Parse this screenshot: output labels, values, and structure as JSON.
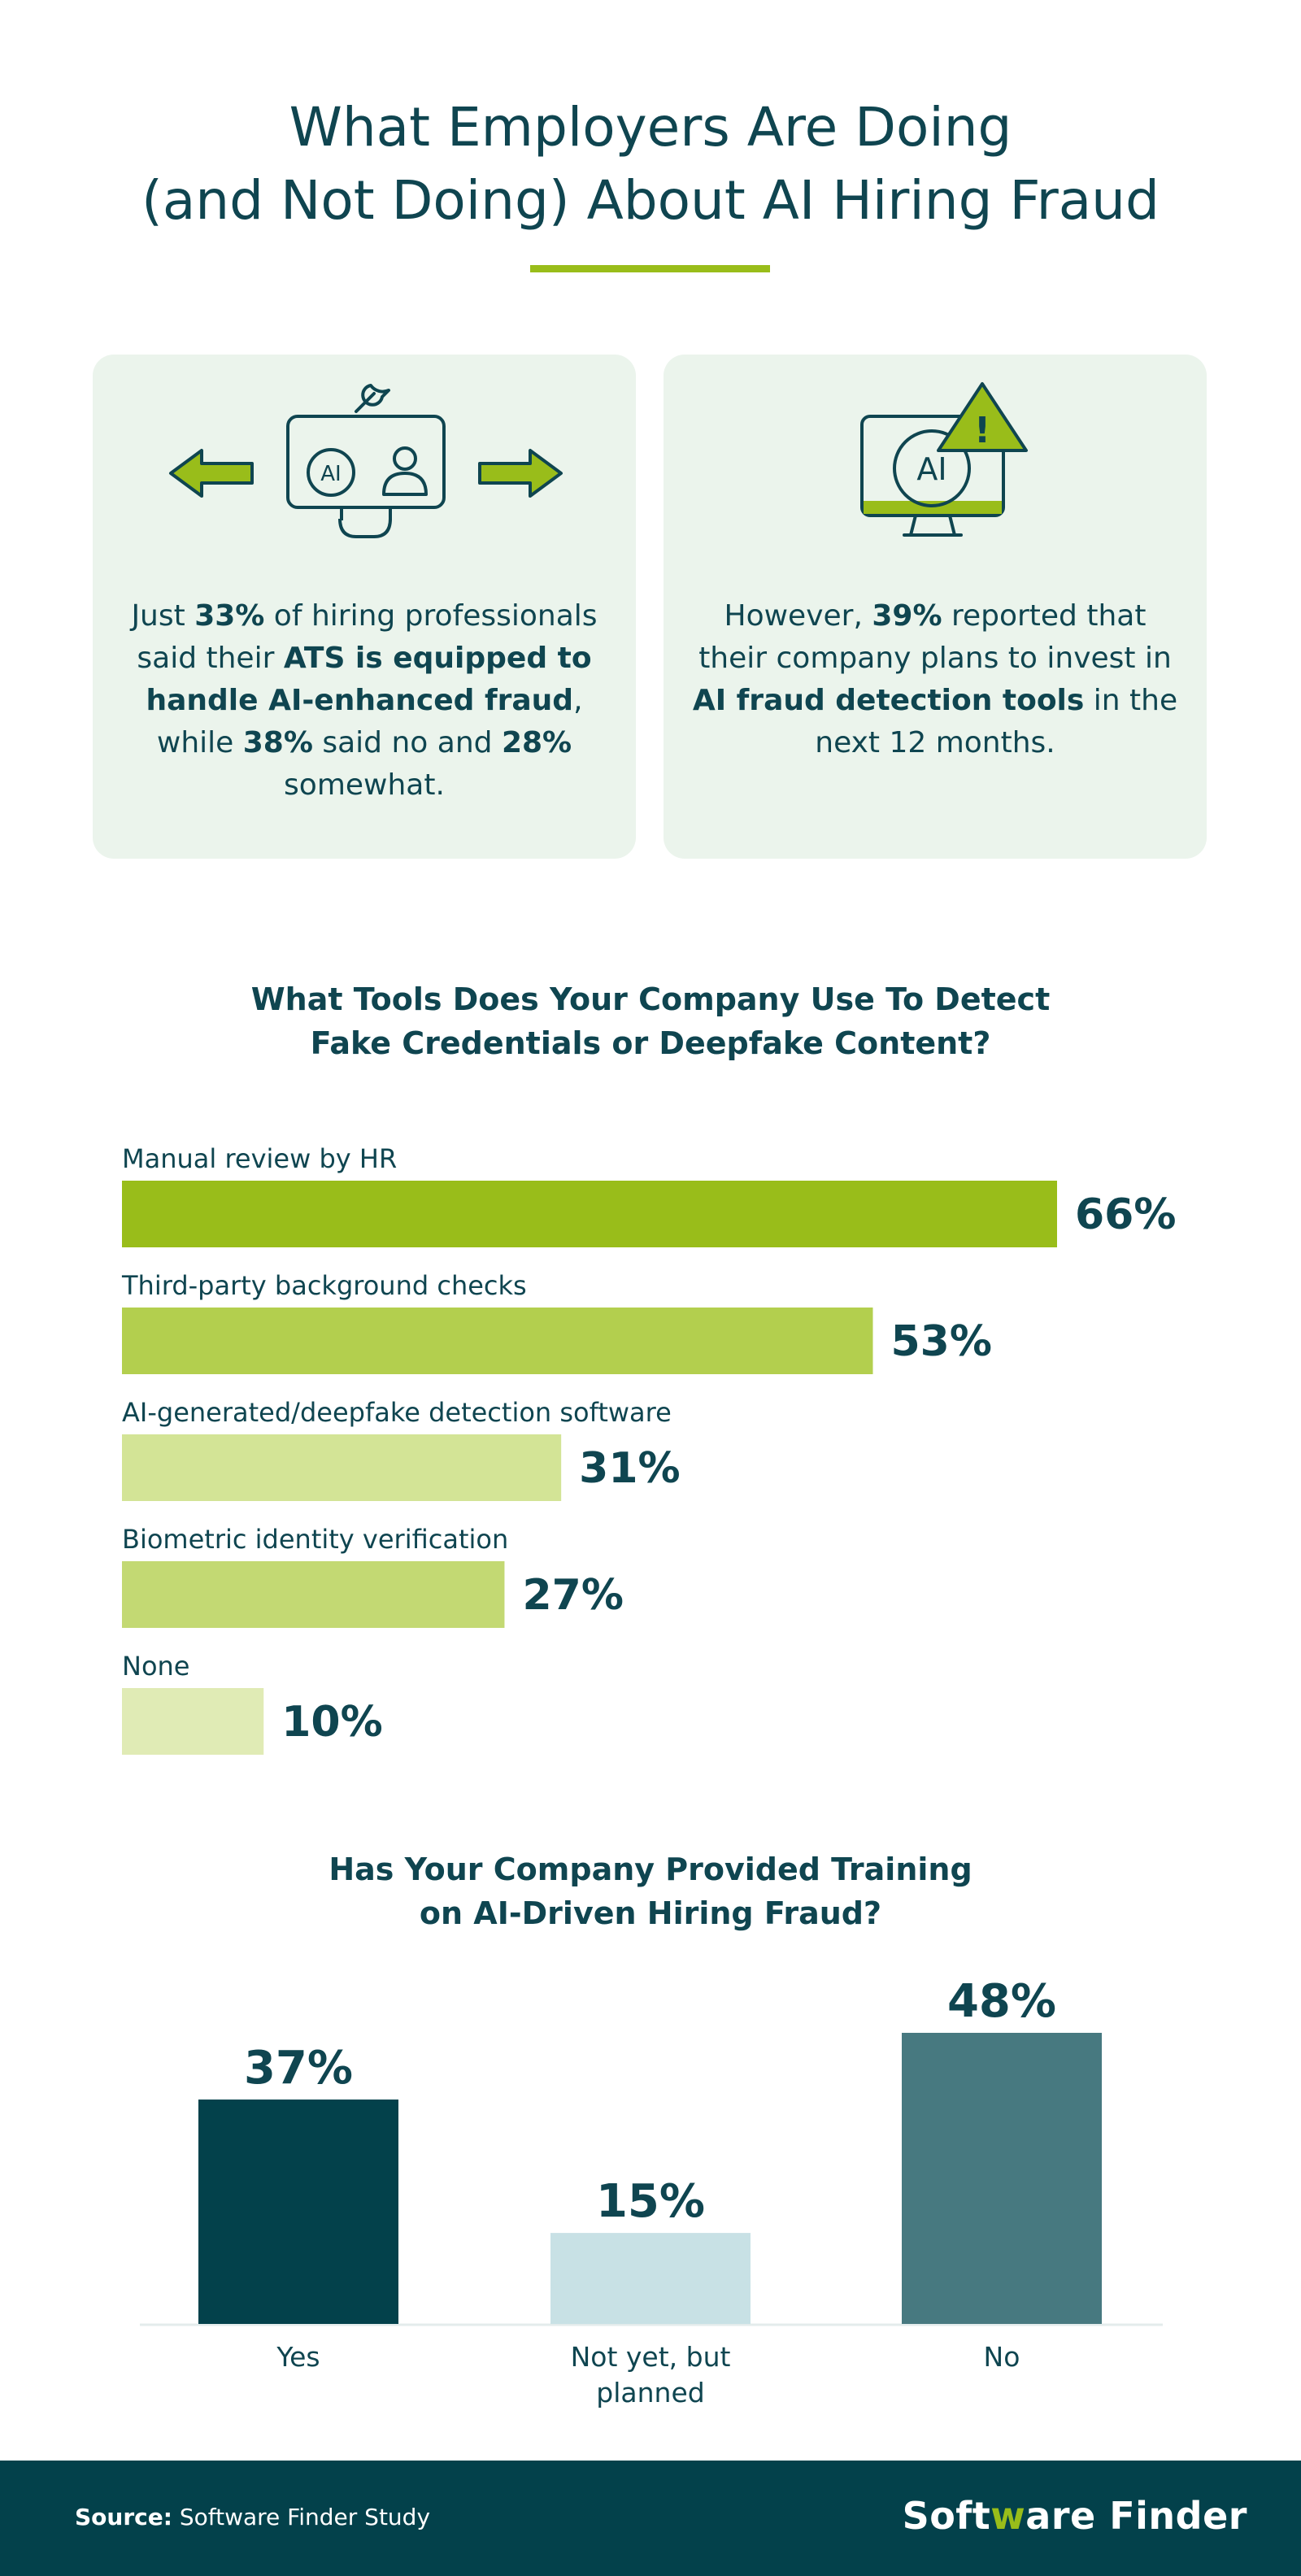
{
  "title": {
    "line1": "What Employers Are Doing",
    "line2": "(and Not Doing) About AI Hiring Fraud"
  },
  "colors": {
    "dark_teal": "#0f4550",
    "accent_green": "#99bd1a",
    "card_bg": "#ebf4ec",
    "footer_bg": "#03414b"
  },
  "cards": [
    {
      "icons": [
        "arrow-left-icon",
        "monitor-ai-user-icon",
        "wrench-icon",
        "arrow-right-icon"
      ],
      "icon_label": "AI",
      "segments": [
        {
          "text": "Just ",
          "bold": false
        },
        {
          "text": "33%",
          "bold": true
        },
        {
          "text": " of hiring professionals said their ",
          "bold": false
        },
        {
          "text": "ATS is equipped to handle AI-enhanced fraud",
          "bold": true
        },
        {
          "text": ", while ",
          "bold": false
        },
        {
          "text": "38%",
          "bold": true
        },
        {
          "text": " said no and ",
          "bold": false
        },
        {
          "text": "28%",
          "bold": true
        },
        {
          "text": " somewhat.",
          "bold": false
        }
      ]
    },
    {
      "icons": [
        "monitor-ai-warning-icon"
      ],
      "icon_label": "AI",
      "warning_symbol": "!",
      "segments": [
        {
          "text": "However, ",
          "bold": false
        },
        {
          "text": "39%",
          "bold": true
        },
        {
          "text": " reported that their company plans to invest in ",
          "bold": false
        },
        {
          "text": "AI fraud detection tools",
          "bold": true
        },
        {
          "text": " in the next 12 months.",
          "bold": false
        }
      ]
    }
  ],
  "section1": {
    "title_line1": "What Tools Does Your Company Use To Detect",
    "title_line2": "Fake Credentials or Deepfake Content?"
  },
  "section2": {
    "title_line1": "Has Your Company Provided Training",
    "title_line2": "on AI-Driven Hiring Fraud?"
  },
  "chart_data": [
    {
      "type": "bar",
      "orientation": "horizontal",
      "title": "What Tools Does Your Company Use To Detect Fake Credentials or Deepfake Content?",
      "categories": [
        "Manual review by HR",
        "Third-party background checks",
        "AI-generated/deepfake detection software",
        "Biometric identity verification",
        "None"
      ],
      "values": [
        66,
        53,
        31,
        27,
        10
      ],
      "value_labels": [
        "66%",
        "53%",
        "31%",
        "27%",
        "10%"
      ],
      "colors": [
        "#99bd1a",
        "#b3cf4e",
        "#d3e496",
        "#c3d973",
        "#e0ebb5"
      ],
      "unit": "%",
      "xlim": [
        0,
        100
      ]
    },
    {
      "type": "bar",
      "orientation": "vertical",
      "title": "Has Your Company Provided Training on AI-Driven Hiring Fraud?",
      "categories": [
        "Yes",
        "Not yet, but\nplanned",
        "No"
      ],
      "category_lines": [
        [
          "Yes"
        ],
        [
          "Not yet, but",
          "planned"
        ],
        [
          "No"
        ]
      ],
      "values": [
        37,
        15,
        48
      ],
      "value_labels": [
        "37%",
        "15%",
        "48%"
      ],
      "colors": [
        "#03414b",
        "#c8e1e5",
        "#477980"
      ],
      "unit": "%",
      "ylim": [
        0,
        48
      ]
    }
  ],
  "footer": {
    "source_label": "Source:",
    "source_text": " Software Finder Study",
    "brand_part1": "Soft",
    "brand_mark": "w",
    "brand_part2": "are Finder"
  }
}
